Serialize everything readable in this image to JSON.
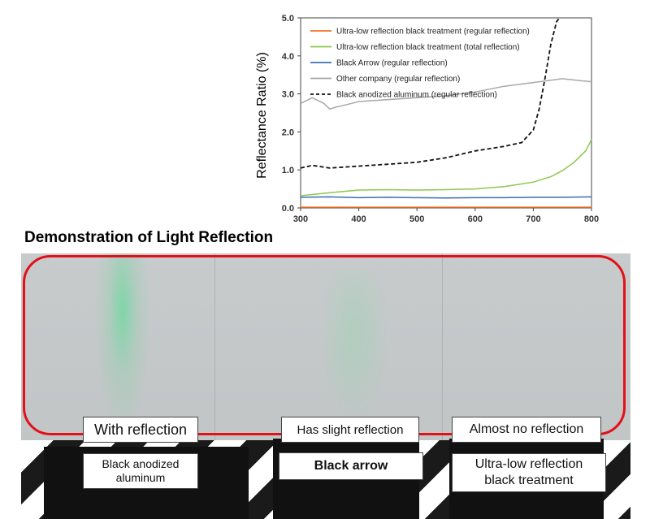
{
  "chart_data": {
    "type": "line",
    "ylabel": "Reflectance Ratio (%)",
    "xlim": [
      300,
      800
    ],
    "ylim": [
      0,
      5
    ],
    "xticks": [
      "300",
      "400",
      "500",
      "600",
      "700",
      "800"
    ],
    "yticks": [
      "0.0",
      "1.0",
      "2.0",
      "3.0",
      "4.0",
      "5.0"
    ],
    "legend_position": "top-left",
    "series": [
      {
        "name": "Ultra-low reflection black treatment (regular reflection)",
        "color": "#f07020",
        "dash": false,
        "x": [
          300,
          400,
          500,
          600,
          700,
          800
        ],
        "y": [
          0.02,
          0.02,
          0.02,
          0.02,
          0.02,
          0.02
        ]
      },
      {
        "name": "Ultra-low reflection black treatment (total reflection)",
        "color": "#8cc850",
        "dash": false,
        "x": [
          300,
          350,
          400,
          450,
          500,
          550,
          600,
          650,
          700,
          730,
          750,
          770,
          790,
          800
        ],
        "y": [
          0.32,
          0.4,
          0.47,
          0.48,
          0.47,
          0.48,
          0.5,
          0.56,
          0.68,
          0.82,
          0.98,
          1.2,
          1.5,
          1.8
        ]
      },
      {
        "name": "Black Arrow (regular reflection)",
        "color": "#3a6fb5",
        "dash": false,
        "x": [
          300,
          350,
          400,
          450,
          500,
          550,
          600,
          650,
          700,
          750,
          800
        ],
        "y": [
          0.28,
          0.29,
          0.27,
          0.28,
          0.27,
          0.26,
          0.27,
          0.27,
          0.28,
          0.28,
          0.29
        ]
      },
      {
        "name": "Other company (regular reflection)",
        "color": "#a8a8a8",
        "dash": false,
        "x": [
          300,
          320,
          340,
          350,
          360,
          380,
          400,
          450,
          500,
          550,
          600,
          650,
          700,
          750,
          780,
          800
        ],
        "y": [
          2.75,
          2.9,
          2.75,
          2.6,
          2.65,
          2.72,
          2.8,
          2.85,
          2.9,
          2.95,
          3.05,
          3.2,
          3.3,
          3.4,
          3.35,
          3.32
        ]
      },
      {
        "name": "Black anodized aluminum (regular reflection)",
        "color": "#111111",
        "dash": true,
        "x": [
          300,
          320,
          350,
          400,
          450,
          500,
          550,
          600,
          650,
          680,
          700,
          710,
          720,
          730,
          740,
          745
        ],
        "y": [
          1.05,
          1.12,
          1.05,
          1.1,
          1.15,
          1.2,
          1.32,
          1.5,
          1.62,
          1.72,
          2.05,
          2.6,
          3.4,
          4.3,
          4.9,
          5.0
        ]
      }
    ]
  },
  "demo": {
    "heading": "Demonstration of Light Reflection",
    "labels": [
      {
        "top": "With reflection",
        "bottom": "Black anodized\naluminum"
      },
      {
        "top": "Has slight reflection",
        "bottom": "Black arrow"
      },
      {
        "top": "Almost no reflection",
        "bottom": "Ultra-low reflection\nblack treatment"
      }
    ]
  }
}
